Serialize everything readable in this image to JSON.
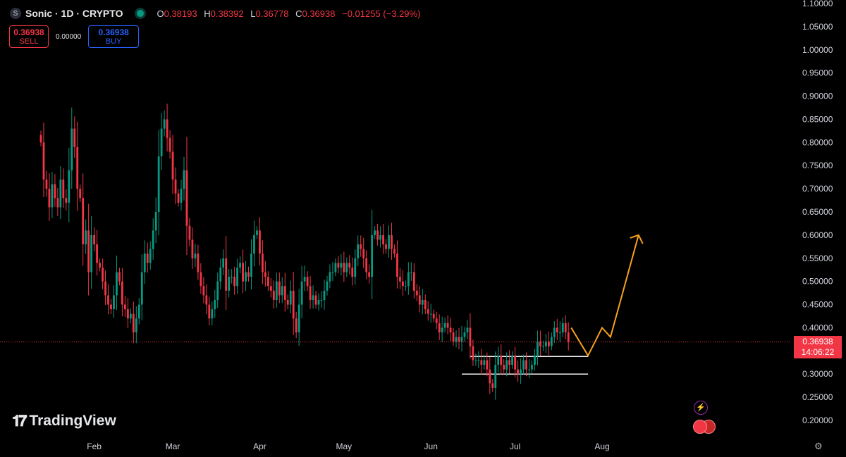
{
  "header": {
    "symbol": "Sonic · 1D · CRYPTO",
    "ohlc": [
      {
        "k": "O",
        "v": "0.38193"
      },
      {
        "k": "H",
        "v": "0.38392"
      },
      {
        "k": "L",
        "v": "0.36778"
      },
      {
        "k": "C",
        "v": "0.36938"
      }
    ],
    "change": "−0.01255 (−3.29%)"
  },
  "trade": {
    "sell_price": "0.36938",
    "sell_label": "SELL",
    "spread": "0.00000",
    "buy_price": "0.36938",
    "buy_label": "BUY"
  },
  "brand": "TradingView",
  "current_price": "0.36938",
  "countdown": "14:06:22",
  "colors": {
    "up": "#089981",
    "down": "#f23645",
    "projection": "#f7a21b",
    "levels": "#ffffff"
  },
  "chart_data": {
    "type": "candlestick",
    "xaxis_labels": [
      "Feb",
      "Mar",
      "Apr",
      "May",
      "Jun",
      "Jul",
      "Aug"
    ],
    "yaxis_ticks": [
      "1.10000",
      "1.05000",
      "1.00000",
      "0.95000",
      "0.90000",
      "0.85000",
      "0.80000",
      "0.75000",
      "0.70000",
      "0.65000",
      "0.60000",
      "0.55000",
      "0.50000",
      "0.45000",
      "0.40000",
      "0.35000",
      "0.30000",
      "0.25000",
      "0.20000"
    ],
    "ylim": [
      0.16,
      1.1
    ],
    "start_date": "2025-01-13",
    "close": [
      0.8,
      0.72,
      0.7,
      0.66,
      0.71,
      0.68,
      0.66,
      0.72,
      0.68,
      0.67,
      0.74,
      0.83,
      0.79,
      0.7,
      0.68,
      0.58,
      0.61,
      0.52,
      0.6,
      0.58,
      0.54,
      0.53,
      0.5,
      0.47,
      0.45,
      0.44,
      0.47,
      0.52,
      0.5,
      0.45,
      0.44,
      0.42,
      0.43,
      0.39,
      0.42,
      0.45,
      0.52,
      0.56,
      0.54,
      0.57,
      0.61,
      0.65,
      0.77,
      0.83,
      0.85,
      0.81,
      0.78,
      0.72,
      0.69,
      0.67,
      0.7,
      0.74,
      0.62,
      0.59,
      0.55,
      0.56,
      0.52,
      0.49,
      0.47,
      0.45,
      0.42,
      0.44,
      0.46,
      0.5,
      0.53,
      0.55,
      0.48,
      0.51,
      0.51,
      0.49,
      0.53,
      0.54,
      0.5,
      0.52,
      0.51,
      0.56,
      0.6,
      0.61,
      0.56,
      0.52,
      0.51,
      0.49,
      0.48,
      0.46,
      0.5,
      0.47,
      0.49,
      0.46,
      0.45,
      0.48,
      0.42,
      0.39,
      0.45,
      0.5,
      0.51,
      0.49,
      0.46,
      0.47,
      0.45,
      0.46,
      0.46,
      0.48,
      0.5,
      0.52,
      0.52,
      0.54,
      0.53,
      0.54,
      0.52,
      0.54,
      0.53,
      0.51,
      0.55,
      0.58,
      0.57,
      0.55,
      0.52,
      0.51,
      0.6,
      0.61,
      0.59,
      0.6,
      0.58,
      0.57,
      0.6,
      0.57,
      0.56,
      0.51,
      0.5,
      0.49,
      0.49,
      0.52,
      0.52,
      0.48,
      0.47,
      0.45,
      0.46,
      0.44,
      0.43,
      0.43,
      0.42,
      0.41,
      0.39,
      0.4,
      0.41,
      0.4,
      0.39,
      0.37,
      0.38,
      0.37,
      0.38,
      0.39,
      0.4,
      0.36,
      0.33,
      0.33,
      0.33,
      0.32,
      0.33,
      0.31,
      0.28,
      0.27,
      0.32,
      0.34,
      0.32,
      0.31,
      0.33,
      0.32,
      0.34,
      0.31,
      0.3,
      0.31,
      0.33,
      0.31,
      0.31,
      0.32,
      0.34,
      0.37,
      0.36,
      0.36,
      0.37,
      0.36,
      0.38,
      0.4,
      0.39,
      0.39,
      0.41,
      0.39,
      0.37
    ],
    "projection": [
      {
        "date": "2025-07-21",
        "price": 0.4
      },
      {
        "date": "2025-07-27",
        "price": 0.34
      },
      {
        "date": "2025-08-01",
        "price": 0.4
      },
      {
        "date": "2025-08-04",
        "price": 0.38
      },
      {
        "date": "2025-08-14",
        "price": 0.6
      }
    ],
    "levels": [
      {
        "price": 0.338,
        "from": "2025-06-15",
        "to": "2025-07-27"
      },
      {
        "price": 0.3,
        "from": "2025-06-12",
        "to": "2025-07-27"
      }
    ]
  }
}
